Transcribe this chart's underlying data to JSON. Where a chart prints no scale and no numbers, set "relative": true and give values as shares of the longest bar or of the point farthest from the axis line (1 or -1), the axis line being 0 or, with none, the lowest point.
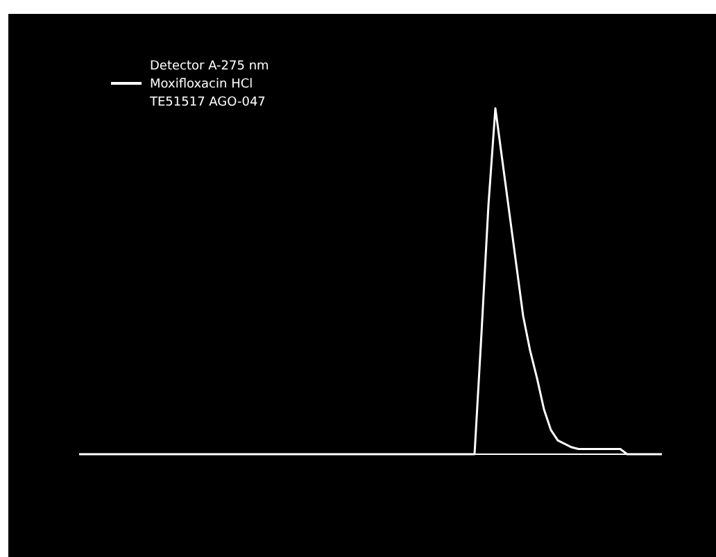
{
  "chart_data": {
    "type": "line",
    "relative": true,
    "legend": "top left",
    "annotations": [
      "Detector A-275 nm",
      "TE51517 AGO-047"
    ],
    "categories": [
      null,
      null,
      null,
      null,
      null,
      null,
      null,
      null,
      null,
      null,
      null,
      null,
      null,
      null,
      null,
      null,
      null,
      null,
      null,
      null,
      null,
      null,
      null,
      null,
      null,
      null,
      null,
      null,
      null,
      null,
      null,
      null,
      null,
      null,
      null,
      null,
      null,
      null,
      null,
      null,
      null,
      null,
      null,
      null,
      null,
      null,
      null,
      null,
      null,
      null,
      null,
      null,
      null,
      null,
      null,
      null,
      null,
      null,
      null,
      null,
      null,
      null,
      null,
      null,
      null,
      null,
      null,
      null,
      null,
      null,
      null,
      null,
      null,
      null,
      null,
      null,
      null,
      null,
      null,
      null,
      null,
      null,
      null,
      null,
      null
    ],
    "series": [
      {
        "name": "Moxifloxacin HCl",
        "color": "#ffffff",
        "values": [
          0,
          0,
          0,
          0,
          0,
          0,
          0,
          0,
          0,
          0,
          0,
          0,
          0,
          0,
          0,
          0,
          0,
          0,
          0,
          0,
          0,
          0,
          0,
          0,
          0,
          0,
          0,
          0,
          0,
          0,
          0,
          0,
          0,
          0,
          0,
          0,
          0,
          0,
          0,
          0,
          0,
          0,
          0,
          0,
          0,
          0,
          0,
          0,
          0,
          0,
          0,
          0,
          0,
          0,
          0,
          0,
          0,
          0,
          0.35,
          0.72,
          1,
          0.85,
          0.7,
          0.55,
          0.4,
          0.3,
          0.22,
          0.13,
          0.07,
          0.04,
          0.03,
          0.02,
          0.015,
          0.015,
          0.015,
          0.015,
          0.015,
          0.015,
          0.015,
          0,
          0,
          0,
          0,
          0,
          0
        ]
      }
    ]
  }
}
